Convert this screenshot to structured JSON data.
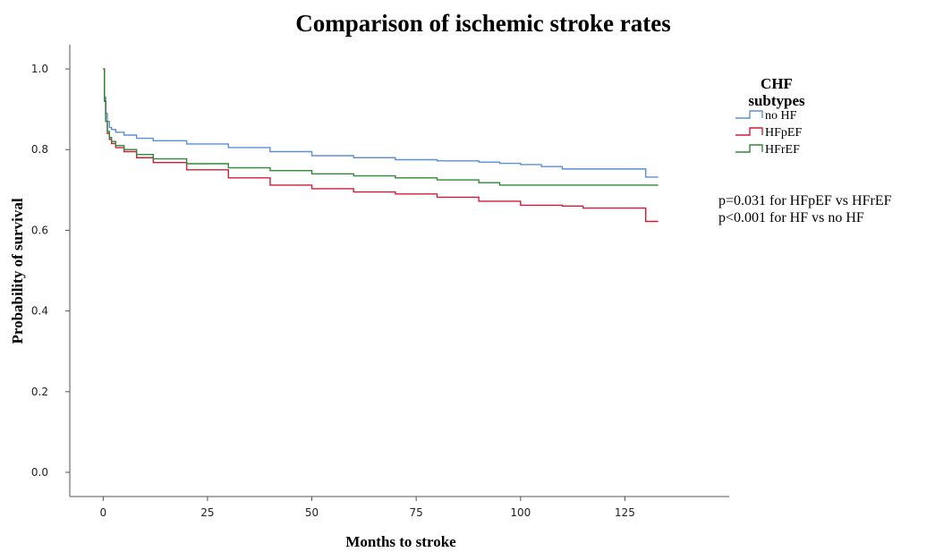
{
  "chart_data": {
    "type": "line",
    "title": "Comparison of ischemic stroke rates",
    "xlabel": "Months to stroke",
    "ylabel": "Probability of survival",
    "xlim": [
      -8,
      150
    ],
    "ylim": [
      -0.06,
      1.06
    ],
    "x_ticks": [
      "0",
      "25",
      "50",
      "75",
      "100",
      "125"
    ],
    "y_ticks": [
      "0.0",
      "0.2",
      "0.4",
      "0.6",
      "0.8",
      "1.0"
    ],
    "grid": false,
    "step": true,
    "legend": {
      "title_lines": [
        "CHF",
        "subtypes"
      ],
      "position": "right"
    },
    "annotations": [
      "p=0.031 for HFpEF vs HFrEF",
      "p<0.001 for HF vs no HF"
    ],
    "series": [
      {
        "name": "no HF",
        "color": "#5b8fd9",
        "x": [
          0,
          0.3,
          0.6,
          1,
          1.5,
          2,
          3,
          5,
          8,
          12,
          20,
          30,
          40,
          50,
          60,
          70,
          80,
          90,
          95,
          100,
          105,
          110,
          115,
          120,
          125,
          130,
          131,
          133
        ],
        "y": [
          1.0,
          0.93,
          0.89,
          0.87,
          0.855,
          0.85,
          0.843,
          0.836,
          0.828,
          0.822,
          0.814,
          0.805,
          0.795,
          0.785,
          0.78,
          0.775,
          0.772,
          0.769,
          0.766,
          0.763,
          0.758,
          0.752,
          0.752,
          0.752,
          0.752,
          0.732,
          0.732,
          0.732
        ]
      },
      {
        "name": "HFpEF",
        "color": "#d01c3a",
        "x": [
          0,
          0.3,
          0.6,
          1,
          1.5,
          2,
          3,
          5,
          8,
          12,
          20,
          30,
          40,
          50,
          60,
          70,
          80,
          90,
          100,
          110,
          115,
          120,
          125,
          130,
          133
        ],
        "y": [
          1.0,
          0.92,
          0.87,
          0.84,
          0.825,
          0.815,
          0.805,
          0.795,
          0.78,
          0.768,
          0.75,
          0.73,
          0.712,
          0.703,
          0.695,
          0.69,
          0.682,
          0.672,
          0.662,
          0.66,
          0.655,
          0.655,
          0.655,
          0.622,
          0.622
        ]
      },
      {
        "name": "HFrEF",
        "color": "#2e8a36",
        "x": [
          0,
          0.3,
          0.6,
          1,
          1.5,
          2,
          3,
          5,
          8,
          12,
          20,
          30,
          40,
          50,
          60,
          70,
          80,
          90,
          95,
          100,
          110,
          120,
          130,
          133
        ],
        "y": [
          1.0,
          0.92,
          0.87,
          0.845,
          0.83,
          0.82,
          0.81,
          0.8,
          0.788,
          0.777,
          0.765,
          0.755,
          0.748,
          0.74,
          0.735,
          0.73,
          0.725,
          0.718,
          0.712,
          0.712,
          0.712,
          0.712,
          0.712,
          0.712
        ]
      }
    ]
  }
}
